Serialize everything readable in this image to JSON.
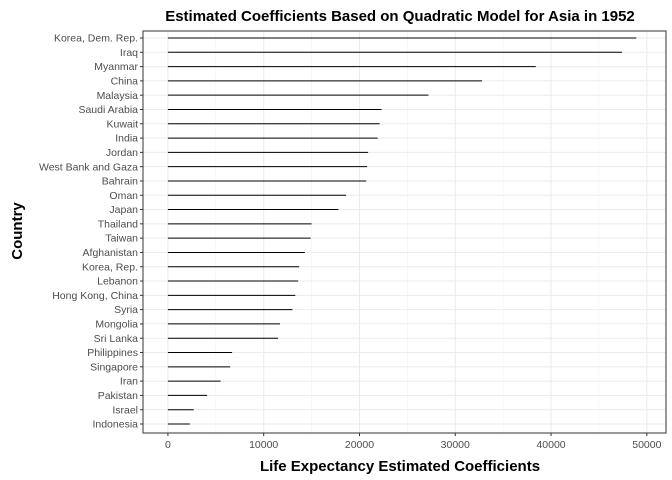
{
  "chart_data": {
    "type": "bar",
    "orientation": "horizontal",
    "title": "Estimated Coefficients Based on Quadratic Model for Asia in 1952",
    "xlabel": "Life Expectancy Estimated Coefficients",
    "ylabel": "Country",
    "xlim": [
      -2600,
      52000
    ],
    "xticks": [
      0,
      10000,
      20000,
      30000,
      40000,
      50000
    ],
    "xtick_labels": [
      "0",
      "10000",
      "20000",
      "30000",
      "40000",
      "50000"
    ],
    "grid": true,
    "categories": [
      "Korea, Dem. Rep.",
      "Iraq",
      "Myanmar",
      "China",
      "Malaysia",
      "Saudi Arabia",
      "Kuwait",
      "India",
      "Jordan",
      "West Bank and Gaza",
      "Bahrain",
      "Oman",
      "Japan",
      "Thailand",
      "Taiwan",
      "Afghanistan",
      "Korea, Rep.",
      "Lebanon",
      "Hong Kong, China",
      "Syria",
      "Mongolia",
      "Sri Lanka",
      "Philippines",
      "Singapore",
      "Iran",
      "Pakistan",
      "Israel",
      "Indonesia"
    ],
    "values": [
      48900,
      47400,
      38400,
      32800,
      27200,
      22300,
      22100,
      21900,
      20900,
      20800,
      20700,
      18600,
      17800,
      15000,
      14900,
      14300,
      13700,
      13600,
      13300,
      13000,
      11700,
      11500,
      6700,
      6500,
      5500,
      4100,
      2700,
      2300
    ]
  }
}
